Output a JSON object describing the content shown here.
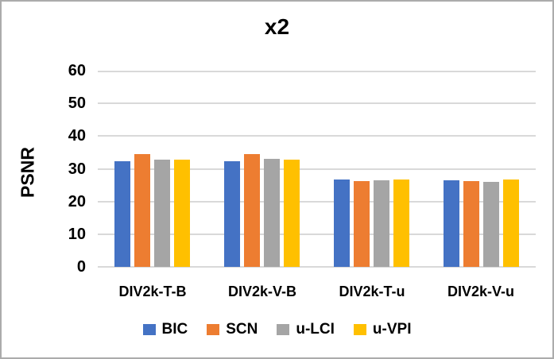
{
  "chart_data": {
    "type": "bar",
    "title": "x2",
    "ylabel": "PSNR",
    "xlabel": "",
    "categories": [
      "DIV2k-T-B",
      "DIV2k-V-B",
      "DIV2k-T-u",
      "DIV2k-V-u"
    ],
    "series": [
      {
        "name": "BIC",
        "color": "#4472C4",
        "values": [
          32.4,
          32.4,
          26.6,
          26.5
        ]
      },
      {
        "name": "SCN",
        "color": "#ED7D31",
        "values": [
          34.4,
          34.6,
          26.2,
          26.2
        ]
      },
      {
        "name": "u-LCI",
        "color": "#A5A5A5",
        "values": [
          32.8,
          33.1,
          26.4,
          26.1
        ]
      },
      {
        "name": "u-VPI",
        "color": "#FFC000",
        "values": [
          32.7,
          32.9,
          26.7,
          26.7
        ]
      }
    ],
    "ylim": [
      0,
      60
    ],
    "yticks": [
      0,
      10,
      20,
      30,
      40,
      50,
      60
    ],
    "grid": true,
    "legend_position": "bottom"
  },
  "style": {
    "grid_color": "#D9D9D9",
    "text_color": "#000000",
    "border_color": "#ABABAB",
    "background": "#FFFFFF"
  }
}
